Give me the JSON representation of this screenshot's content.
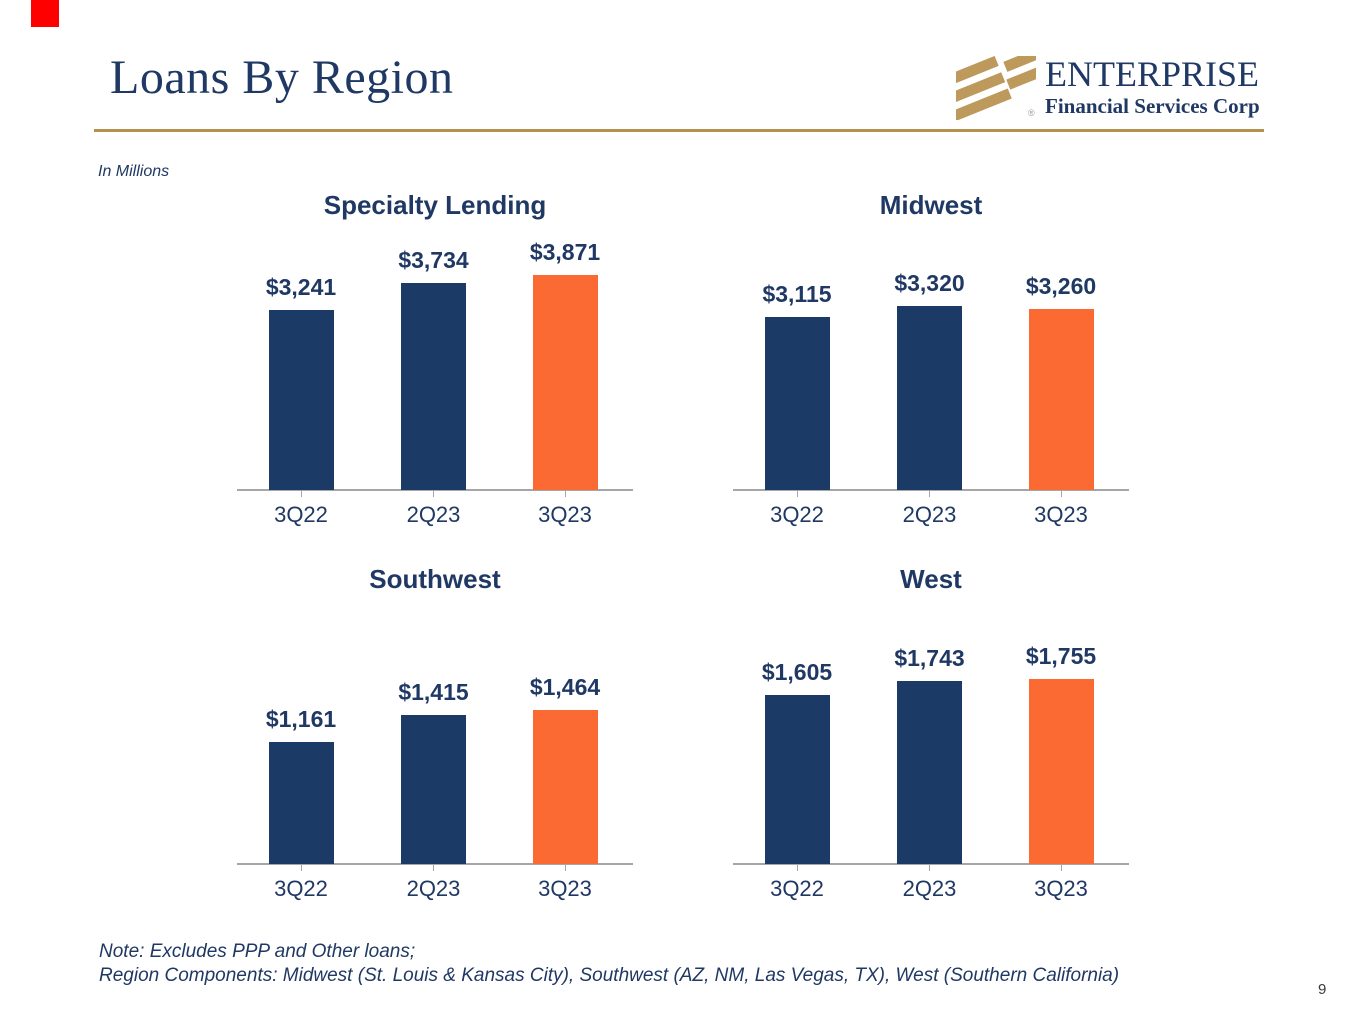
{
  "slide": {
    "title": "Loans By Region",
    "units_note": "In Millions",
    "page_number": "9"
  },
  "logo": {
    "company": "ENTERPRISE",
    "tagline": "Financial Services Corp",
    "registered_mark": "®"
  },
  "footnote": {
    "line1": "Note: Excludes PPP and Other loans;",
    "line2": "Region Components: Midwest (St. Louis & Kansas City), Southwest (AZ, NM, Las Vegas, TX), West (Southern California)"
  },
  "colors": {
    "navy_text": "#1f3864",
    "bar_navy": "#1b3a66",
    "bar_orange": "#fa6a32",
    "gold_divider": "#b3914f",
    "axis_gray": "#a6a6a6",
    "marker_red": "#fe0000"
  },
  "chart_data": [
    {
      "type": "bar",
      "title": "Specialty Lending",
      "categories": [
        "3Q22",
        "2Q23",
        "3Q23"
      ],
      "values": [
        3241,
        3734,
        3871
      ],
      "value_labels": [
        "$3,241",
        "$3,734",
        "$3,871"
      ],
      "bar_colors": [
        "navy",
        "navy",
        "orange"
      ],
      "ylim": [
        0,
        4000
      ],
      "unit": "USD millions",
      "grid": false,
      "legend": "none"
    },
    {
      "type": "bar",
      "title": "Midwest",
      "categories": [
        "3Q22",
        "2Q23",
        "3Q23"
      ],
      "values": [
        3115,
        3320,
        3260
      ],
      "value_labels": [
        "$3,115",
        "$3,320",
        "$3,260"
      ],
      "bar_colors": [
        "navy",
        "navy",
        "orange"
      ],
      "ylim": [
        0,
        4000
      ],
      "unit": "USD millions",
      "grid": false,
      "legend": "none"
    },
    {
      "type": "bar",
      "title": "Southwest",
      "categories": [
        "3Q22",
        "2Q23",
        "3Q23"
      ],
      "values": [
        1161,
        1415,
        1464
      ],
      "value_labels": [
        "$1,161",
        "$1,415",
        "$1,464"
      ],
      "bar_colors": [
        "navy",
        "navy",
        "orange"
      ],
      "ylim": [
        0,
        2000
      ],
      "unit": "USD millions",
      "grid": false,
      "legend": "none"
    },
    {
      "type": "bar",
      "title": "West",
      "categories": [
        "3Q22",
        "2Q23",
        "3Q23"
      ],
      "values": [
        1605,
        1743,
        1755
      ],
      "value_labels": [
        "$1,605",
        "$1,743",
        "$1,755"
      ],
      "bar_colors": [
        "navy",
        "navy",
        "orange"
      ],
      "ylim": [
        0,
        2000
      ],
      "unit": "USD millions",
      "grid": false,
      "legend": "none"
    }
  ]
}
